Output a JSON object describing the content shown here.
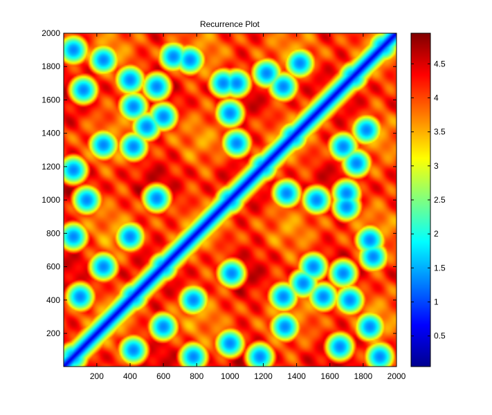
{
  "chart_data": {
    "type": "heatmap",
    "title": "Recurrence Plot",
    "xlabel": "",
    "ylabel": "",
    "xlim": [
      1,
      2000
    ],
    "ylim": [
      1,
      2000
    ],
    "x_ticks": [
      200,
      400,
      600,
      800,
      1000,
      1200,
      1400,
      1600,
      1800,
      2000
    ],
    "y_ticks": [
      200,
      400,
      600,
      800,
      1000,
      1200,
      1400,
      1600,
      1800,
      2000
    ],
    "colorbar": {
      "range": [
        0.05,
        4.95
      ],
      "ticks": [
        0.5,
        1,
        1.5,
        2,
        2.5,
        3,
        3.5,
        4,
        4.5
      ],
      "tick_labels": [
        "0.5",
        "1",
        "1.5",
        "2",
        "2.5",
        "3",
        "3.5",
        "4",
        "4.5"
      ],
      "colormap": "jet"
    },
    "low_distance_blocks": [
      [
        60,
        60
      ],
      [
        420,
        420
      ],
      [
        600,
        600
      ],
      [
        1000,
        1000
      ],
      [
        1200,
        1200
      ],
      [
        1380,
        1380
      ],
      [
        1740,
        1740
      ],
      [
        1920,
        1920
      ],
      [
        60,
        1900
      ],
      [
        1900,
        60
      ],
      [
        240,
        1840
      ],
      [
        1840,
        240
      ],
      [
        400,
        1720
      ],
      [
        1720,
        400
      ],
      [
        120,
        1660
      ],
      [
        1660,
        120
      ],
      [
        560,
        1680
      ],
      [
        1680,
        560
      ],
      [
        960,
        1700
      ],
      [
        1700,
        960
      ],
      [
        1320,
        1680
      ],
      [
        1680,
        1320
      ],
      [
        240,
        1330
      ],
      [
        1330,
        240
      ],
      [
        600,
        1500
      ],
      [
        1500,
        600
      ],
      [
        1000,
        1520
      ],
      [
        1520,
        1000
      ],
      [
        140,
        1000
      ],
      [
        1000,
        140
      ],
      [
        560,
        1010
      ],
      [
        1010,
        560
      ],
      [
        1340,
        1040
      ],
      [
        1040,
        1340
      ],
      [
        1700,
        1040
      ],
      [
        1040,
        1700
      ],
      [
        60,
        1180
      ],
      [
        1180,
        60
      ],
      [
        500,
        1440
      ],
      [
        1440,
        500
      ],
      [
        60,
        780
      ],
      [
        780,
        60
      ],
      [
        760,
        1840
      ],
      [
        1840,
        760
      ],
      [
        400,
        780
      ],
      [
        780,
        400
      ],
      [
        420,
        1320
      ],
      [
        1320,
        420
      ],
      [
        240,
        600
      ],
      [
        600,
        240
      ],
      [
        1560,
        420
      ],
      [
        420,
        1560
      ],
      [
        1860,
        660
      ],
      [
        660,
        1860
      ],
      [
        1220,
        1760
      ],
      [
        1760,
        1220
      ],
      [
        100,
        420
      ],
      [
        420,
        100
      ],
      [
        1820,
        1420
      ],
      [
        1420,
        1820
      ]
    ]
  }
}
